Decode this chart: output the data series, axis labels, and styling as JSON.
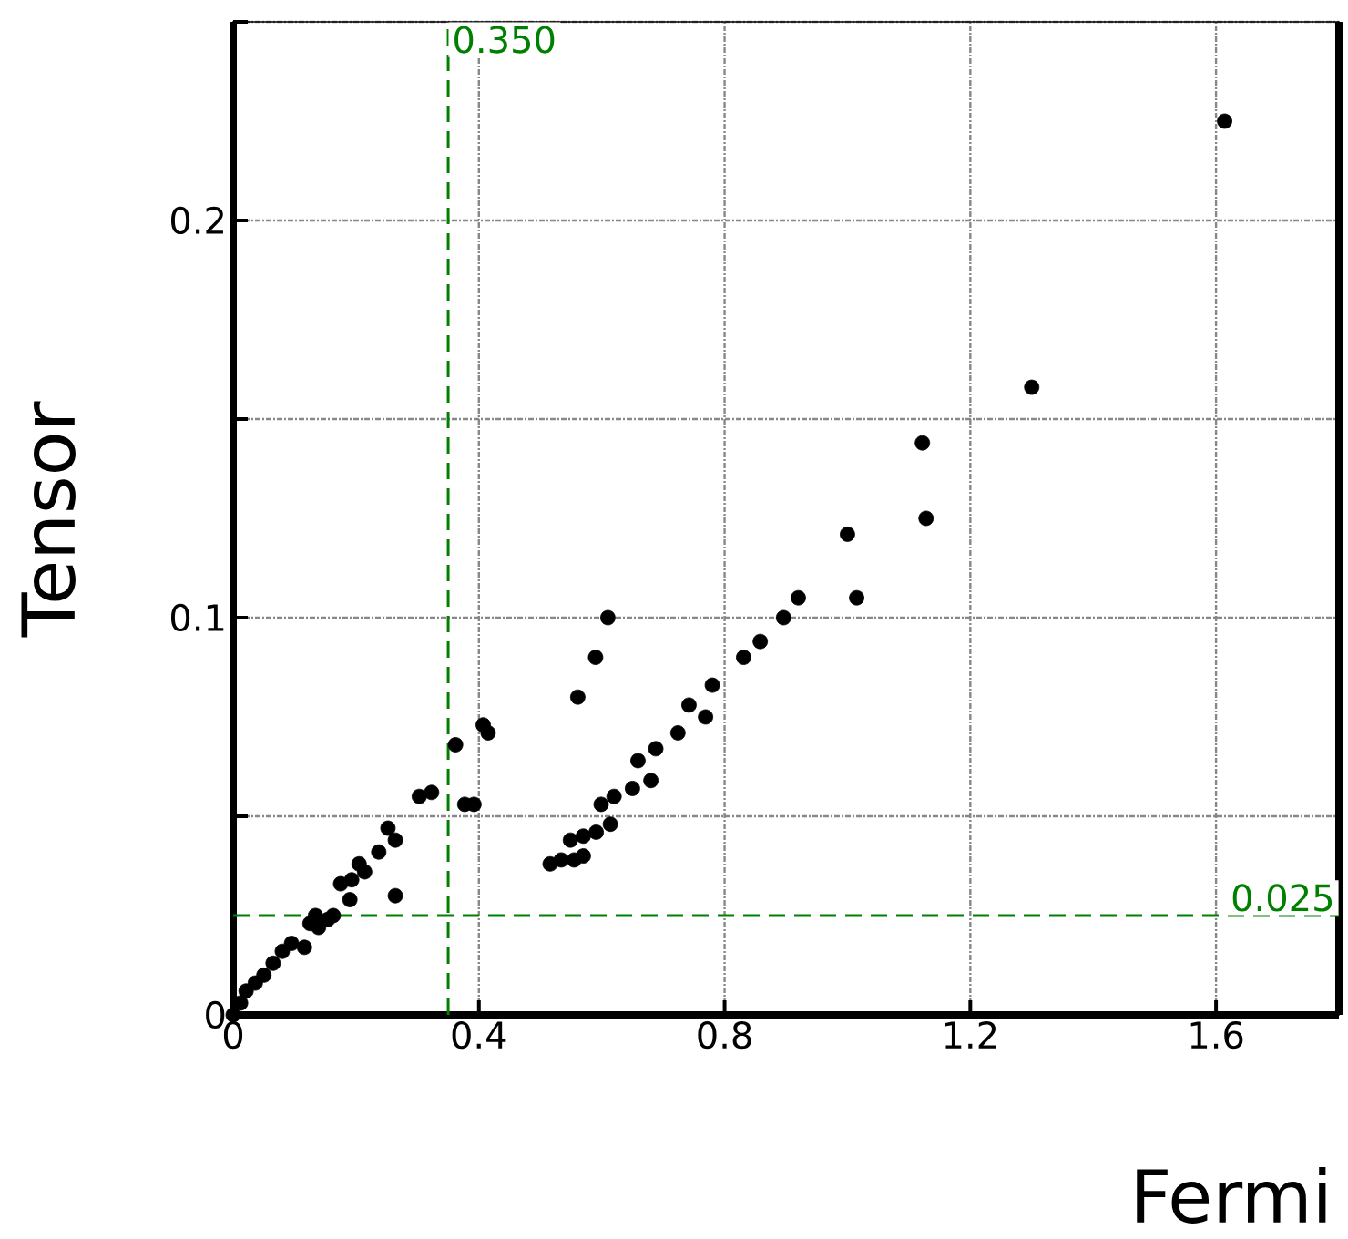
{
  "chart_data": {
    "type": "scatter",
    "xlabel": "Fermi",
    "ylabel": "Tensor",
    "xlim": [
      0,
      1.8
    ],
    "ylim": [
      0,
      0.25
    ],
    "xticks": [
      0,
      0.4,
      0.8,
      1.2,
      1.6
    ],
    "yticks": [
      0,
      {
        "value": 0.05,
        "label": null
      },
      0.1,
      {
        "value": 0.15,
        "label": null
      },
      0.2,
      {
        "value": 0.25,
        "label": null
      }
    ],
    "grid": true,
    "series": [
      {
        "color": "#000000",
        "x": [
          0,
          0.012,
          0.021,
          0.036,
          0.05,
          0.065,
          0.08,
          0.095,
          0.116,
          0.139,
          0.125,
          0.134,
          0.154,
          0.163,
          0.19,
          0.264,
          0.175,
          0.193,
          0.205,
          0.214,
          0.237,
          0.264,
          0.252,
          0.303,
          0.323,
          0.377,
          0.392,
          0.362,
          0.407,
          0.415,
          0.516,
          0.534,
          0.555,
          0.57,
          0.549,
          0.57,
          0.591,
          0.614,
          0.599,
          0.62,
          0.65,
          0.68,
          0.659,
          0.688,
          0.724,
          0.742,
          0.769,
          0.78,
          0.831,
          0.858,
          0.896,
          0.92,
          1.015,
          1.0,
          1.122,
          1.128,
          1.3,
          1.614,
          0.561,
          0.59,
          0.61
        ],
        "values": [
          0,
          0.003,
          0.006,
          0.008,
          0.01,
          0.013,
          0.016,
          0.018,
          0.017,
          0.022,
          0.023,
          0.025,
          0.024,
          0.025,
          0.029,
          0.03,
          0.033,
          0.034,
          0.038,
          0.036,
          0.041,
          0.044,
          0.047,
          0.055,
          0.056,
          0.053,
          0.053,
          0.068,
          0.073,
          0.071,
          0.038,
          0.039,
          0.039,
          0.04,
          0.044,
          0.045,
          0.046,
          0.048,
          0.053,
          0.055,
          0.057,
          0.059,
          0.064,
          0.067,
          0.071,
          0.078,
          0.075,
          0.083,
          0.09,
          0.094,
          0.1,
          0.105,
          0.105,
          0.121,
          0.144,
          0.125,
          0.158,
          0.225,
          0.08,
          0.09,
          0.1
        ]
      }
    ],
    "ref_lines": [
      {
        "axis": "x",
        "value": 0.35,
        "label": "0.350",
        "color": "#008000",
        "line_style": "dashed"
      },
      {
        "axis": "y",
        "value": 0.025,
        "label": "0.025",
        "color": "#008000",
        "line_style": "dashed"
      }
    ]
  }
}
